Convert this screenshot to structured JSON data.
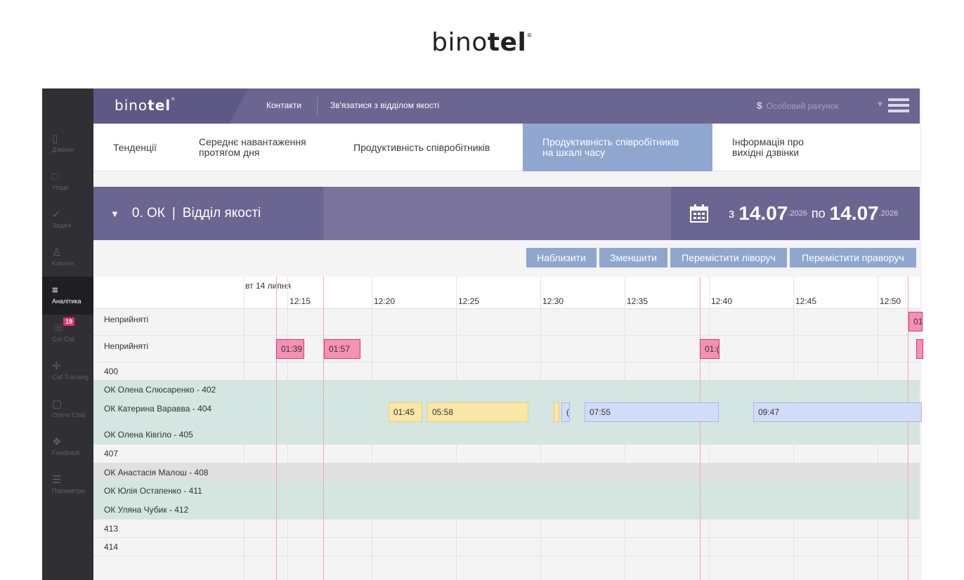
{
  "brand": {
    "name_light": "bino",
    "name_bold": "tel",
    "mark": "®"
  },
  "topbar": {
    "logo_light": "bino",
    "logo_bold": "tel",
    "logo_mark": "®",
    "contacts": "Контакти",
    "quality_link": "Зв'язатися з відділом якості",
    "account": "Особовий рахунок",
    "account_icon": "dollar-icon",
    "menu_icon": "hamburger-icon"
  },
  "sidebar": {
    "items": [
      {
        "label": "Дзвінки",
        "icon": "phone-book-icon",
        "glyph": "▯"
      },
      {
        "label": "Угоди",
        "icon": "deal-icon",
        "glyph": "□"
      },
      {
        "label": "Задачі",
        "icon": "checkmark-icon",
        "glyph": "✓"
      },
      {
        "label": "Клієнти",
        "icon": "person-icon",
        "glyph": "♙"
      },
      {
        "label": "Аналітика",
        "icon": "analytics-icon",
        "glyph": "≡"
      },
      {
        "label": "Get Call",
        "icon": "get-call-icon",
        "glyph": "☏",
        "badge": "19"
      },
      {
        "label": "Call Tracking",
        "icon": "call-tracking-icon",
        "glyph": "✛"
      },
      {
        "label": "Online Chat",
        "icon": "chat-icon",
        "glyph": "▢"
      },
      {
        "label": "Feedback",
        "icon": "feedback-icon",
        "glyph": "❖"
      },
      {
        "label": "Параметри",
        "icon": "settings-icon",
        "glyph": "☰"
      }
    ],
    "active_index": 4
  },
  "tabs": [
    {
      "line1": "Тенденції",
      "line2": ""
    },
    {
      "line1": "Середнє навантаження",
      "line2": "протягом дня"
    },
    {
      "line1": "Продуктивність співробітників",
      "line2": ""
    },
    {
      "line1": "Продуктивність співробітників",
      "line2": "на шкалі часу"
    },
    {
      "line1": "Інформація про",
      "line2": "вихідні дзвінки"
    }
  ],
  "active_tab": 3,
  "filter": {
    "department": "0. ОК",
    "department_separator": "|",
    "department_name": "Відділ якості",
    "from_word": "з",
    "from_date": "14.07",
    "from_year": ".2026",
    "to_word": "по",
    "to_date": "14.07",
    "to_year": ".2026",
    "calendar_icon": "calendar-icon"
  },
  "controls": {
    "zoom_in": "Наблизити",
    "zoom_out": "Зменшити",
    "move_left": "Перемістити ліворуч",
    "move_right": "Перемістити праворуч"
  },
  "timeline": {
    "date_label": "вт 14 липня",
    "ticks": [
      "12:15",
      "12:20",
      "12:25",
      "12:30",
      "12:35",
      "12:40",
      "12:45",
      "12:50"
    ],
    "rows": [
      {
        "label": "Неприйняті",
        "type": "plain"
      },
      {
        "label": "Неприйняті",
        "type": "plain"
      },
      {
        "label": "400",
        "type": "plain"
      },
      {
        "label": "ОК Олена Слюсаренко - 402",
        "type": "teal"
      },
      {
        "label": "ОК Катерина Варавва - 404",
        "type": "teal"
      },
      {
        "label": "ОК Олена Ківгіло - 405",
        "type": "teal"
      },
      {
        "label": "407",
        "type": "plain"
      },
      {
        "label": "ОК Анастасія Малош - 408",
        "type": "gray"
      },
      {
        "label": "ОК Юлія Остапенко - 411",
        "type": "teal"
      },
      {
        "label": "ОК Уляна Чубик - 412",
        "type": "teal"
      },
      {
        "label": "413",
        "type": "plain"
      },
      {
        "label": "414",
        "type": "plain"
      }
    ],
    "events": [
      {
        "row": 0,
        "label": "01",
        "kind": "missed"
      },
      {
        "row": 1,
        "label": "01:39",
        "kind": "missed"
      },
      {
        "row": 1,
        "label": "01:57",
        "kind": "missed"
      },
      {
        "row": 1,
        "label": "01:(",
        "kind": "missed"
      },
      {
        "row": 1,
        "label": "",
        "kind": "missed"
      },
      {
        "row": 4,
        "label": "01:45",
        "kind": "yellow"
      },
      {
        "row": 4,
        "label": "05:58",
        "kind": "yellow"
      },
      {
        "row": 4,
        "label": "",
        "kind": "yellow"
      },
      {
        "row": 4,
        "label": "(",
        "kind": "blue"
      },
      {
        "row": 4,
        "label": "07:55",
        "kind": "blue"
      },
      {
        "row": 4,
        "label": "09:47",
        "kind": "blue"
      }
    ]
  }
}
